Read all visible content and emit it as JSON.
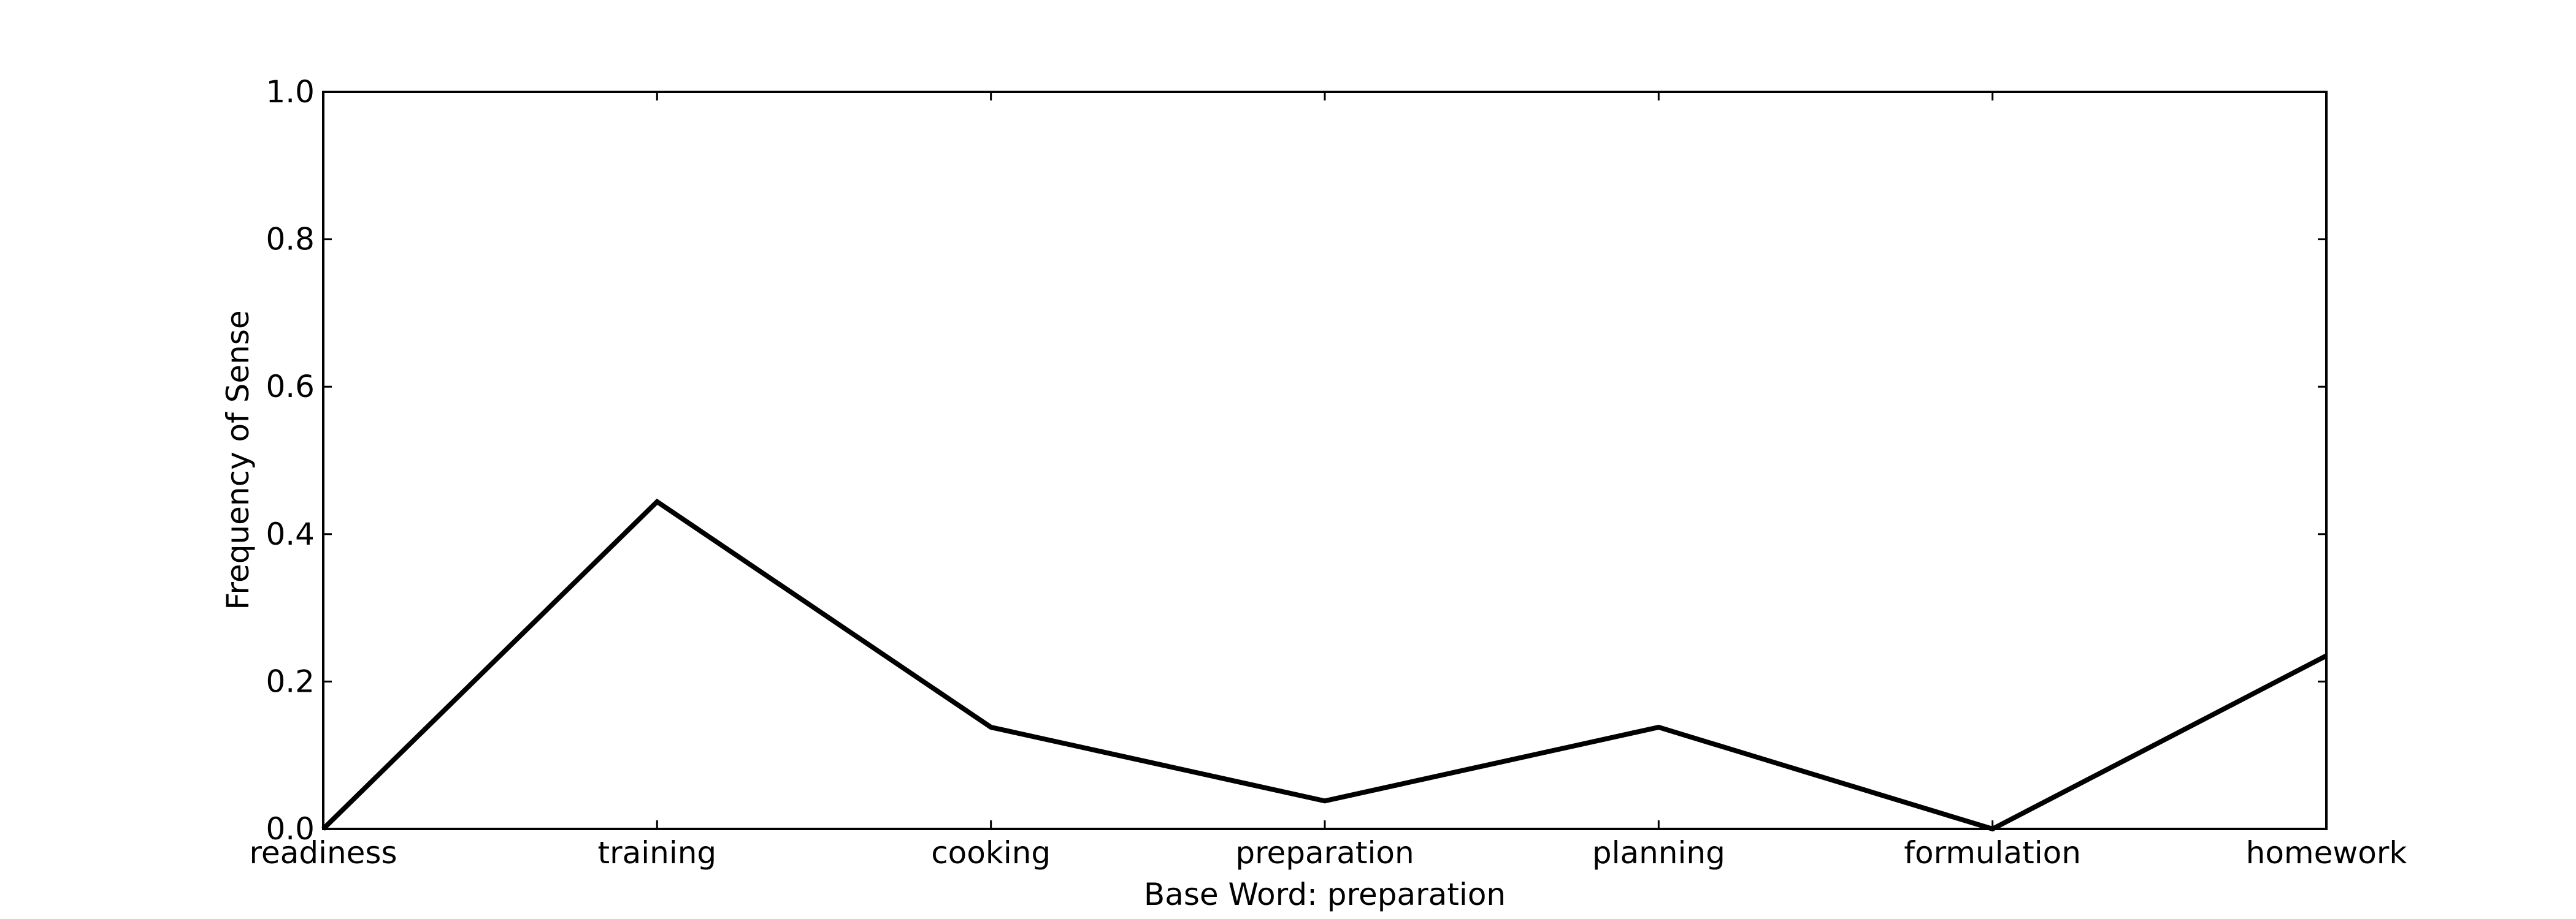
{
  "chart_data": {
    "type": "line",
    "categories": [
      "readiness",
      "training",
      "cooking",
      "preparation",
      "planning",
      "formulation",
      "homework"
    ],
    "series": [
      {
        "values": [
          0.0,
          0.444,
          0.138,
          0.038,
          0.138,
          0.0,
          0.235
        ],
        "color": "#000000"
      }
    ],
    "xlabel": "Base Word: preparation",
    "ylabel": "Frequency of Sense",
    "ylim": [
      0,
      1.0
    ],
    "yticks": [
      "0.0",
      "0.2",
      "0.4",
      "0.6",
      "0.8",
      "1.0"
    ],
    "grid": false
  }
}
